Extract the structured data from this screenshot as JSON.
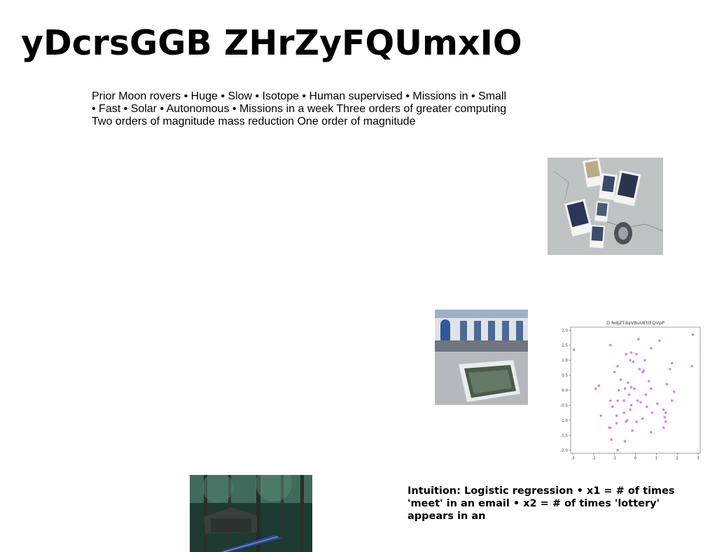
{
  "slide": {
    "title": "yDcrsGGB ZHrZyFQUmxIO",
    "body": "Prior Moon rovers • Huge • Slow • Isotope • Human supervised • Missions in • Small • Fast • Solar • Autonomous • Missions in a week Three orders of greater computing Two orders of magnitude mass reduction One order of magnitude",
    "caption": "Intuition: Logistic regression • x1 = # of times 'meet' in an email • x2 = # of times 'lottery' appears in an"
  },
  "images": {
    "photo_a": "photo of polaroid prints on concrete",
    "photo_b": "photo of courtyard with reflecting pool",
    "photo_c": "photo of forest with wooden hut"
  },
  "chart_data": {
    "type": "scatter",
    "title": "D NdJZTdqVBuUEttFQVpP",
    "xlabel": "",
    "ylabel": "",
    "xlim": [
      -3.1,
      3.1
    ],
    "ylim": [
      -2.1,
      2.1
    ],
    "xticks": [
      "-3",
      "-2",
      "-1",
      "0",
      "1",
      "2",
      "3"
    ],
    "yticks": [
      "-2.0",
      "-1.5",
      "-1.0",
      "-0.5",
      "0.0",
      "0.5",
      "1.0",
      "1.5",
      "2.0"
    ],
    "grid": false,
    "color": "#e07ee8",
    "points": [
      [
        -2.95,
        1.35
      ],
      [
        -1.2,
        1.5
      ],
      [
        0.15,
        1.7
      ],
      [
        1.15,
        1.65
      ],
      [
        2.75,
        1.85
      ],
      [
        -0.45,
        1.2
      ],
      [
        -0.2,
        1.25
      ],
      [
        0.75,
        1.4
      ],
      [
        -0.85,
        0.8
      ],
      [
        -0.25,
        1.0
      ],
      [
        -0.1,
        0.95
      ],
      [
        0.05,
        1.2
      ],
      [
        0.45,
        1.0
      ],
      [
        1.75,
        0.9
      ],
      [
        2.7,
        0.8
      ],
      [
        -1.0,
        0.6
      ],
      [
        0.2,
        0.7
      ],
      [
        0.35,
        0.6
      ],
      [
        0.4,
        0.65
      ],
      [
        1.65,
        0.7
      ],
      [
        -0.7,
        0.35
      ],
      [
        -0.35,
        0.25
      ],
      [
        0.65,
        0.3
      ],
      [
        -1.75,
        0.15
      ],
      [
        -1.9,
        0.05
      ],
      [
        -0.8,
        0.0
      ],
      [
        -0.5,
        0.05
      ],
      [
        -0.2,
        0.1
      ],
      [
        -0.05,
        0.05
      ],
      [
        0.75,
        0.05
      ],
      [
        1.5,
        0.2
      ],
      [
        1.85,
        -0.05
      ],
      [
        -0.3,
        -0.15
      ],
      [
        0.5,
        -0.15
      ],
      [
        -1.2,
        -0.35
      ],
      [
        -0.85,
        -0.35
      ],
      [
        -0.55,
        -0.35
      ],
      [
        0.1,
        -0.35
      ],
      [
        0.25,
        -0.4
      ],
      [
        1.05,
        -0.45
      ],
      [
        1.75,
        -0.35
      ],
      [
        -1.1,
        -0.55
      ],
      [
        -0.2,
        -0.5
      ],
      [
        0.55,
        -0.55
      ],
      [
        1.35,
        -0.65
      ],
      [
        -0.9,
        -0.85
      ],
      [
        -0.55,
        -0.75
      ],
      [
        -0.25,
        -0.65
      ],
      [
        0.8,
        -0.75
      ],
      [
        1.45,
        -0.75
      ],
      [
        -1.65,
        -0.85
      ],
      [
        -0.4,
        -1.0
      ],
      [
        0.35,
        -0.95
      ],
      [
        1.4,
        -0.9
      ],
      [
        -0.9,
        -1.1
      ],
      [
        -0.45,
        -1.05
      ],
      [
        0.05,
        -1.05
      ],
      [
        1.45,
        -1.05
      ],
      [
        -1.2,
        -1.25
      ],
      [
        -1.25,
        -1.25
      ],
      [
        -0.15,
        -1.35
      ],
      [
        0.75,
        -1.4
      ],
      [
        1.35,
        -1.25
      ],
      [
        -1.15,
        -1.65
      ],
      [
        -0.5,
        -1.7
      ],
      [
        -0.85,
        -2.0
      ]
    ]
  }
}
